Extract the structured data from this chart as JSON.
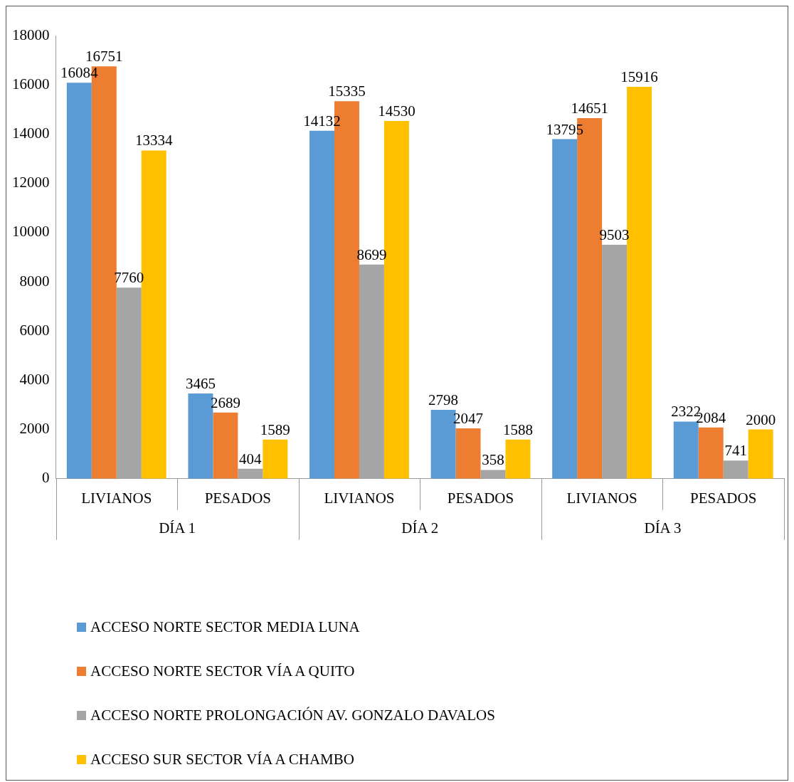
{
  "chart_data": {
    "type": "bar",
    "categories": [
      "LIVIANOS",
      "PESADOS",
      "LIVIANOS",
      "PESADOS",
      "LIVIANOS",
      "PESADOS"
    ],
    "series": [
      {
        "name": "ACCESO NORTE SECTOR MEDIA LUNA",
        "color": "#5b9bd5",
        "values": [
          16084,
          3465,
          14132,
          2798,
          13795,
          2322
        ]
      },
      {
        "name": "ACCESO NORTE SECTOR VÍA A QUITO",
        "color": "#ed7d31",
        "values": [
          16751,
          2689,
          15335,
          2047,
          14651,
          2084
        ]
      },
      {
        "name": "ACCESO NORTE PROLONGACIÓN AV. GONZALO DAVALOS",
        "color": "#a5a5a5",
        "values": [
          7760,
          404,
          8699,
          358,
          9503,
          741
        ]
      },
      {
        "name": "ACCESO SUR SECTOR VÍA A CHAMBO",
        "color": "#ffc000",
        "values": [
          13334,
          1589,
          14530,
          1588,
          15916,
          2000
        ]
      }
    ],
    "annotations": [
      "DÍA 1",
      "DÍA 2",
      "DÍA 3"
    ],
    "ylim": [
      0,
      18000
    ],
    "yticks": [
      0,
      2000,
      4000,
      6000,
      8000,
      10000,
      12000,
      14000,
      16000,
      18000
    ],
    "grid": false,
    "legend": "bottom",
    "data_labels": true
  }
}
